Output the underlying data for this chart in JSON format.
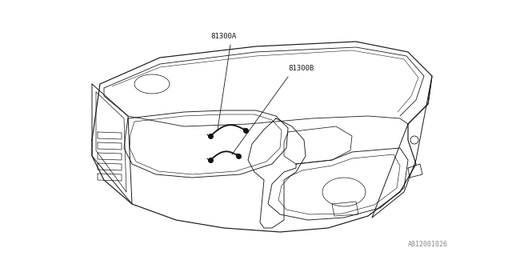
{
  "bg_color": "#ffffff",
  "line_color": "#1a1a1a",
  "label_81300A": "81300A",
  "label_81300B": "81300B",
  "watermark": "A812001026",
  "fig_width": 6.4,
  "fig_height": 3.2,
  "dpi": 100
}
